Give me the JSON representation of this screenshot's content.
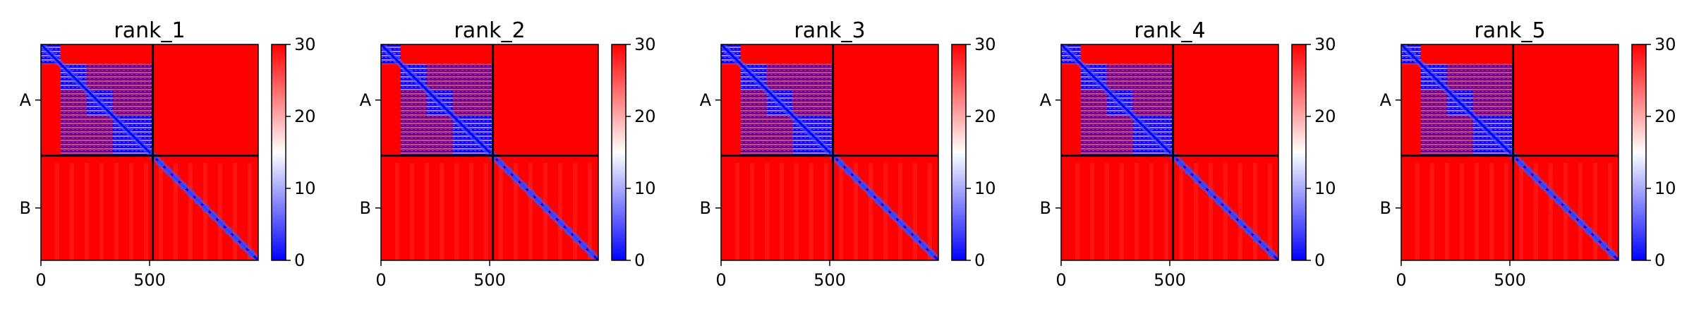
{
  "colors": {
    "low": "#0000ff",
    "mid": "#ffffff",
    "high": "#ff0000",
    "divider": "#000000"
  },
  "chart_data": [
    {
      "type": "heatmap",
      "title": "rank_1",
      "xticks": [
        0,
        500
      ],
      "ytick_labels": [
        "A",
        "B"
      ],
      "colorbar": {
        "range": [
          0,
          30
        ],
        "ticks": [
          0,
          10,
          20,
          30
        ]
      },
      "matrix_size": 1000,
      "chain_boundary": 515,
      "domain_blocks_in_chain_A": [
        [
          0,
          90
        ],
        [
          90,
          210
        ],
        [
          210,
          330
        ],
        [
          330,
          515
        ]
      ]
    },
    {
      "type": "heatmap",
      "title": "rank_2",
      "xticks": [
        0,
        500
      ],
      "ytick_labels": [
        "A",
        "B"
      ],
      "colorbar": {
        "range": [
          0,
          30
        ],
        "ticks": [
          0,
          10,
          20,
          30
        ]
      },
      "matrix_size": 1000,
      "chain_boundary": 515,
      "domain_blocks_in_chain_A": [
        [
          0,
          90
        ],
        [
          90,
          210
        ],
        [
          210,
          330
        ],
        [
          330,
          515
        ]
      ]
    },
    {
      "type": "heatmap",
      "title": "rank_3",
      "xticks": [
        0,
        500
      ],
      "ytick_labels": [
        "A",
        "B"
      ],
      "colorbar": {
        "range": [
          0,
          30
        ],
        "ticks": [
          0,
          10,
          20,
          30
        ]
      },
      "matrix_size": 1000,
      "chain_boundary": 515,
      "domain_blocks_in_chain_A": [
        [
          0,
          90
        ],
        [
          90,
          210
        ],
        [
          210,
          330
        ],
        [
          330,
          515
        ]
      ]
    },
    {
      "type": "heatmap",
      "title": "rank_4",
      "xticks": [
        0,
        500
      ],
      "ytick_labels": [
        "A",
        "B"
      ],
      "colorbar": {
        "range": [
          0,
          30
        ],
        "ticks": [
          0,
          10,
          20,
          30
        ]
      },
      "matrix_size": 1000,
      "chain_boundary": 515,
      "domain_blocks_in_chain_A": [
        [
          0,
          90
        ],
        [
          90,
          210
        ],
        [
          210,
          330
        ],
        [
          330,
          515
        ]
      ]
    },
    {
      "type": "heatmap",
      "title": "rank_5",
      "xticks": [
        0,
        500
      ],
      "ytick_labels": [
        "A",
        "B"
      ],
      "colorbar": {
        "range": [
          0,
          30
        ],
        "ticks": [
          0,
          10,
          20,
          30
        ]
      },
      "matrix_size": 1000,
      "chain_boundary": 515,
      "domain_blocks_in_chain_A": [
        [
          0,
          90
        ],
        [
          90,
          210
        ],
        [
          210,
          330
        ],
        [
          330,
          515
        ]
      ]
    }
  ]
}
